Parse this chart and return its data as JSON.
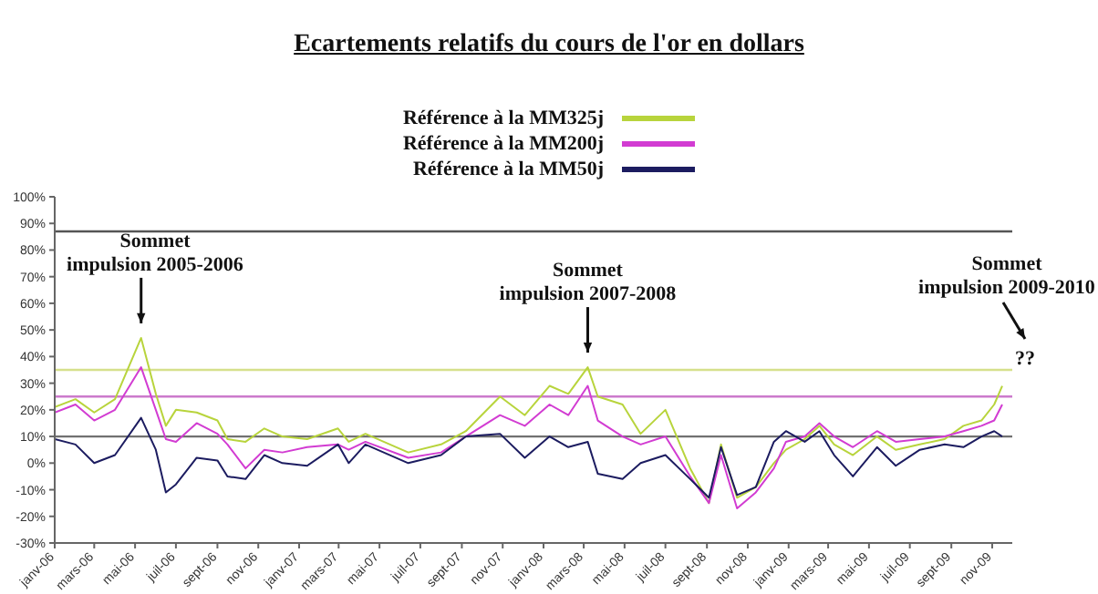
{
  "chart_data": {
    "type": "line",
    "title": "Ecartements relatifs du cours de l'or en dollars",
    "legend": "top",
    "marker": "none",
    "line_style": "solid",
    "grid": false,
    "x": [
      "2006-01-01",
      "2006-02-01",
      "2006-03-01",
      "2006-04-01",
      "2006-05-10",
      "2006-06-01",
      "2006-06-16",
      "2006-07-01",
      "2006-08-01",
      "2006-09-01",
      "2006-09-16",
      "2006-10-13",
      "2006-11-10",
      "2006-12-07",
      "2007-01-13",
      "2007-02-28",
      "2007-03-16",
      "2007-04-10",
      "2007-06-13",
      "2007-08-01",
      "2007-09-07",
      "2007-10-28",
      "2007-12-04",
      "2008-01-10",
      "2008-02-07",
      "2008-03-07",
      "2008-03-22",
      "2008-04-28",
      "2008-05-25",
      "2008-07-01",
      "2008-08-07",
      "2008-09-04",
      "2008-09-22",
      "2008-10-16",
      "2008-11-13",
      "2008-12-10",
      "2008-12-28",
      "2009-01-25",
      "2009-02-16",
      "2009-03-10",
      "2009-04-07",
      "2009-05-13",
      "2009-06-10",
      "2009-07-16",
      "2009-08-22",
      "2009-09-19",
      "2009-10-16",
      "2009-11-04",
      "2009-11-16"
    ],
    "series": [
      {
        "name": "Référence à la MM325j",
        "color": "#b8d43c",
        "values": [
          21,
          24,
          19,
          24,
          47,
          26,
          14,
          20,
          19,
          16,
          9,
          8,
          13,
          10,
          9,
          13,
          8,
          11,
          4,
          7,
          12,
          25,
          18,
          29,
          26,
          36,
          25,
          22,
          11,
          20,
          -2,
          -15,
          7,
          -13,
          -9,
          0,
          5,
          9,
          14,
          7,
          3,
          10,
          5,
          7,
          9,
          14,
          16,
          22,
          29
        ]
      },
      {
        "name": "Référence à la MM200j",
        "color": "#d23cd2",
        "values": [
          19,
          22,
          16,
          20,
          36,
          20,
          9,
          8,
          15,
          11,
          7,
          -2,
          5,
          4,
          6,
          7,
          5,
          8,
          2,
          4,
          10,
          18,
          14,
          22,
          18,
          29,
          16,
          10,
          7,
          10,
          -5,
          -15,
          3,
          -17,
          -11,
          -2,
          8,
          10,
          15,
          10,
          6,
          12,
          8,
          9,
          10,
          12,
          14,
          16,
          22
        ]
      },
      {
        "name": "Référence à la MM50j",
        "color": "#1c1c60",
        "values": [
          9,
          7,
          0,
          3,
          17,
          5,
          -11,
          -8,
          2,
          1,
          -5,
          -6,
          3,
          0,
          -1,
          7,
          0,
          7,
          0,
          3,
          10,
          11,
          2,
          10,
          6,
          8,
          -4,
          -6,
          0,
          3,
          -6,
          -13,
          6,
          -12,
          -9,
          8,
          12,
          8,
          12,
          3,
          -5,
          6,
          -1,
          5,
          7,
          6,
          10,
          12,
          10
        ]
      }
    ],
    "xlim": [
      "2006-01-01",
      "2009-12-01"
    ],
    "xticks": [
      {
        "value": "2006-01-01",
        "label": "janv-06"
      },
      {
        "value": "2006-03-01",
        "label": "mars-06"
      },
      {
        "value": "2006-05-01",
        "label": "mai-06"
      },
      {
        "value": "2006-07-01",
        "label": "juil-06"
      },
      {
        "value": "2006-09-01",
        "label": "sept-06"
      },
      {
        "value": "2006-11-01",
        "label": "nov-06"
      },
      {
        "value": "2007-01-01",
        "label": "janv-07"
      },
      {
        "value": "2007-03-01",
        "label": "mars-07"
      },
      {
        "value": "2007-05-01",
        "label": "mai-07"
      },
      {
        "value": "2007-07-01",
        "label": "juil-07"
      },
      {
        "value": "2007-09-01",
        "label": "sept-07"
      },
      {
        "value": "2007-11-01",
        "label": "nov-07"
      },
      {
        "value": "2008-01-01",
        "label": "janv-08"
      },
      {
        "value": "2008-03-01",
        "label": "mars-08"
      },
      {
        "value": "2008-05-01",
        "label": "mai-08"
      },
      {
        "value": "2008-07-01",
        "label": "juil-08"
      },
      {
        "value": "2008-09-01",
        "label": "sept-08"
      },
      {
        "value": "2008-11-01",
        "label": "nov-08"
      },
      {
        "value": "2009-01-01",
        "label": "janv-09"
      },
      {
        "value": "2009-03-01",
        "label": "mars-09"
      },
      {
        "value": "2009-05-01",
        "label": "mai-09"
      },
      {
        "value": "2009-07-01",
        "label": "juil-09"
      },
      {
        "value": "2009-09-01",
        "label": "sept-09"
      },
      {
        "value": "2009-11-01",
        "label": "nov-09"
      }
    ],
    "ylim": [
      -30,
      100
    ],
    "yticks": [
      {
        "value": -30,
        "label": "-30%"
      },
      {
        "value": -20,
        "label": "-20%"
      },
      {
        "value": -10,
        "label": "-10%"
      },
      {
        "value": 0,
        "label": "0%"
      },
      {
        "value": 10,
        "label": "10%"
      },
      {
        "value": 20,
        "label": "20%"
      },
      {
        "value": 30,
        "label": "30%"
      },
      {
        "value": 40,
        "label": "40%"
      },
      {
        "value": 50,
        "label": "50%"
      },
      {
        "value": 60,
        "label": "60%"
      },
      {
        "value": 70,
        "label": "70%"
      },
      {
        "value": 80,
        "label": "80%"
      },
      {
        "value": 90,
        "label": "90%"
      },
      {
        "value": 100,
        "label": "100%"
      }
    ],
    "ref_lines": [
      {
        "axis": "y",
        "value": 87,
        "color": "#555555"
      },
      {
        "axis": "y",
        "value": 35,
        "color": "#d6e08c"
      },
      {
        "axis": "y",
        "value": 25,
        "color": "#cc7acc"
      },
      {
        "axis": "y",
        "value": 10,
        "color": "#707070"
      }
    ],
    "annotations": [
      {
        "text": "Sommet\nimpulsion 2005-2006",
        "x": "2006-05-10",
        "y": 47
      },
      {
        "text": "Sommet\nimpulsion 2007-2008",
        "x": "2008-03-07",
        "y": 36
      },
      "Sommet\nimpulsion 2009-2010",
      "??"
    ]
  }
}
